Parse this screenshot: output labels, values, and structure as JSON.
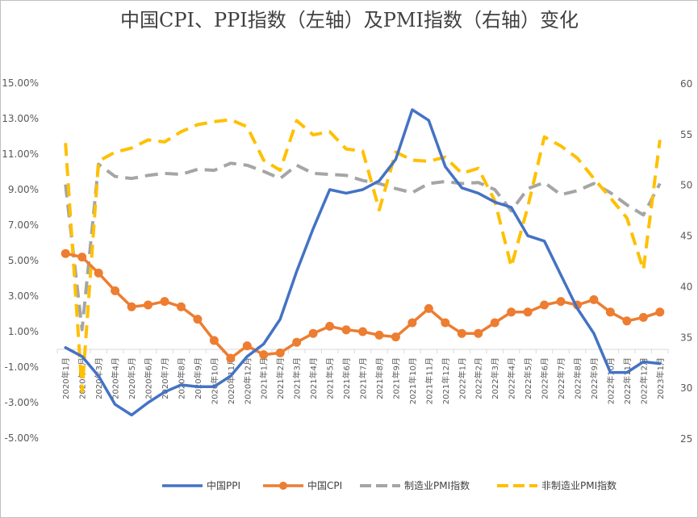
{
  "chart_data": {
    "type": "line",
    "title": "中国CPI、PPI指数（左轴）及PMI指数（右轴）变化",
    "categories": [
      "2020年1月",
      "2020年2月",
      "2020年3月",
      "2020年4月",
      "2020年5月",
      "2020年6月",
      "2020年7月",
      "2020年8月",
      "2020年9月",
      "2020年10月",
      "2020年11月",
      "2020年12月",
      "2021年1月",
      "2021年2月",
      "2021年3月",
      "2021年4月",
      "2021年5月",
      "2021年6月",
      "2021年7月",
      "2021年8月",
      "2021年9月",
      "2021年10月",
      "2021年11月",
      "2021年12月",
      "2022年1月",
      "2022年2月",
      "2022年3月",
      "2022年4月",
      "2022年5月",
      "2022年6月",
      "2022年7月",
      "2022年8月",
      "2022年9月",
      "2022年10月",
      "2022年11月",
      "2022年12月",
      "2023年1月"
    ],
    "left_axis": {
      "ylim": [
        -5,
        15
      ],
      "ticks": [
        "-5.00%",
        "-3.00%",
        "-1.00%",
        "1.00%",
        "3.00%",
        "5.00%",
        "7.00%",
        "9.00%",
        "11.00%",
        "13.00%",
        "15.00%"
      ]
    },
    "right_axis": {
      "ylim": [
        25,
        60
      ],
      "ticks": [
        "25",
        "30",
        "35",
        "40",
        "45",
        "50",
        "55",
        "60"
      ]
    },
    "series": [
      {
        "name": "中国PPI",
        "axis": "left",
        "color": "#4472c4",
        "style": "solid",
        "markers": false,
        "values": [
          0.1,
          -0.4,
          -1.5,
          -3.1,
          -3.7,
          -3.0,
          -2.4,
          -2.0,
          -2.1,
          -2.1,
          -1.5,
          -0.4,
          0.3,
          1.7,
          4.4,
          6.8,
          9.0,
          8.8,
          9.0,
          9.5,
          10.7,
          13.5,
          12.9,
          10.3,
          9.1,
          8.8,
          8.3,
          8.0,
          6.4,
          6.1,
          4.2,
          2.3,
          0.9,
          -1.3,
          -1.3,
          -0.7,
          -0.8
        ]
      },
      {
        "name": "中国CPI",
        "axis": "left",
        "color": "#ed7d31",
        "style": "solid",
        "markers": true,
        "values": [
          5.4,
          5.2,
          4.3,
          3.3,
          2.4,
          2.5,
          2.7,
          2.4,
          1.7,
          0.5,
          -0.5,
          0.2,
          -0.3,
          -0.2,
          0.4,
          0.9,
          1.3,
          1.1,
          1.0,
          0.8,
          0.7,
          1.5,
          2.3,
          1.5,
          0.9,
          0.9,
          1.5,
          2.1,
          2.1,
          2.5,
          2.7,
          2.5,
          2.8,
          2.1,
          1.6,
          1.8,
          2.1
        ]
      },
      {
        "name": "制造业PMI指数",
        "axis": "right",
        "color": "#a5a5a5",
        "style": "dashed",
        "markers": false,
        "values": [
          50.0,
          35.7,
          52.0,
          50.8,
          50.6,
          50.9,
          51.1,
          51.0,
          51.5,
          51.4,
          52.1,
          51.9,
          51.3,
          50.6,
          51.9,
          51.1,
          51.0,
          50.9,
          50.4,
          50.1,
          49.6,
          49.2,
          50.1,
          50.3,
          50.1,
          50.2,
          49.5,
          47.4,
          49.6,
          50.2,
          49.0,
          49.4,
          50.1,
          49.2,
          48.0,
          47.0,
          50.1
        ]
      },
      {
        "name": "非制造业PMI指数",
        "axis": "right",
        "color": "#ffc000",
        "style": "dashed",
        "markers": false,
        "values": [
          54.1,
          29.6,
          52.3,
          53.2,
          53.6,
          54.4,
          54.2,
          55.2,
          55.9,
          56.2,
          56.4,
          55.7,
          52.4,
          51.4,
          56.3,
          54.9,
          55.2,
          53.5,
          53.3,
          47.5,
          53.2,
          52.4,
          52.3,
          52.7,
          51.1,
          51.6,
          48.4,
          41.9,
          47.8,
          54.7,
          53.8,
          52.6,
          50.6,
          48.7,
          46.7,
          41.6,
          54.4
        ]
      }
    ],
    "legend": "bottom",
    "grid": false
  }
}
